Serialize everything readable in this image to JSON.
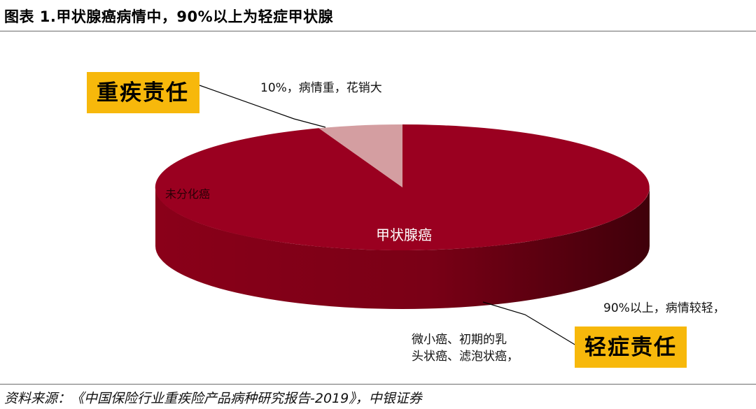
{
  "title": "图表 1.甲状腺癌病情中，90%以上为轻症甲状腺",
  "source": "资料来源：《中国保险行业重疾险产品病种研究报告-2019》，中银证券",
  "chart_data": {
    "type": "pie",
    "style": "3d",
    "slices": [
      {
        "label": "甲状腺癌",
        "value": 90,
        "color": "#9a0020"
      },
      {
        "label": "",
        "value": 10,
        "color": "#d49ea1"
      }
    ],
    "annotations": {
      "severe_box": "重疾责任",
      "severe_note": "10%，病情重，花销大",
      "mild_box": "轻症责任",
      "mild_note_1": "90%以上，病情较轻，",
      "mild_note_2": "微小癌、初期的乳",
      "mild_note_3": "头状癌、滤泡状癌，",
      "inner_label": "未分化癌"
    },
    "legend": false
  }
}
